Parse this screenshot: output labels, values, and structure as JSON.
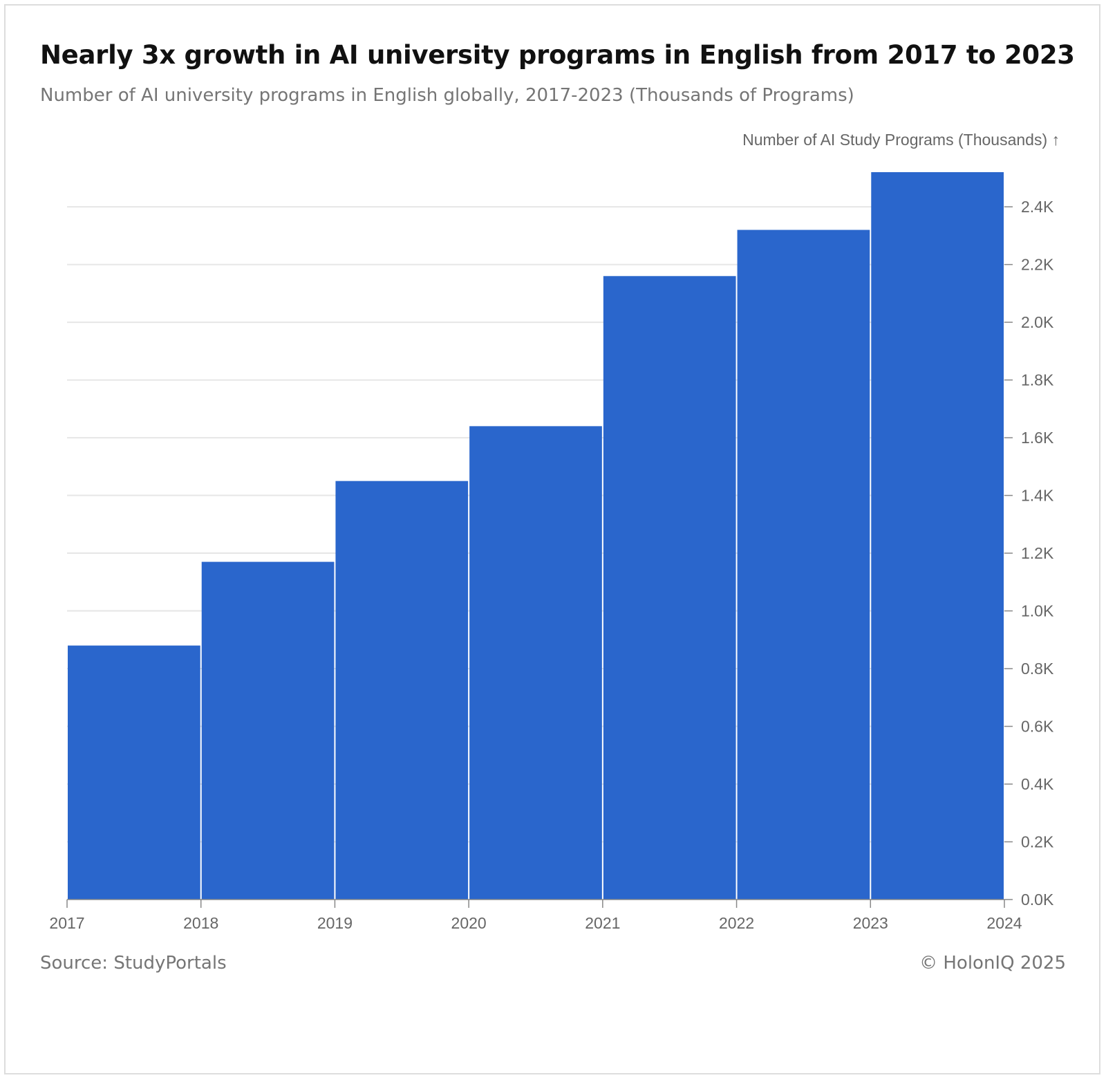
{
  "header": {
    "title": "Nearly 3x growth in AI university programs in English from 2017 to 2023",
    "subtitle": "Number of AI university programs in English globally, 2017-2023 (Thousands of Programs)"
  },
  "footer": {
    "source": "Source: StudyPortals",
    "copyright": "© HolonIQ 2025"
  },
  "colors": {
    "bar": "#2a66cc",
    "grid": "#e6e6e6",
    "axis": "#888888"
  },
  "chart_data": {
    "type": "bar",
    "title": "Nearly 3x growth in AI university programs in English from 2017 to 2023",
    "subtitle": "Number of AI university programs in English globally, 2017-2023 (Thousands of Programs)",
    "xlabel": "",
    "ylabel": "Number of AI Study Programs (Thousands) ↑",
    "y_axis_position": "right",
    "x_ticks": [
      "2017",
      "2018",
      "2019",
      "2020",
      "2021",
      "2022",
      "2023",
      "2024"
    ],
    "y_ticks": [
      "0.0K",
      "0.2K",
      "0.4K",
      "0.6K",
      "0.8K",
      "1.0K",
      "1.2K",
      "1.4K",
      "1.6K",
      "1.8K",
      "2.0K",
      "2.2K",
      "2.4K"
    ],
    "ylim": [
      0,
      2.52
    ],
    "grid": true,
    "series": [
      {
        "bins": [
          {
            "start": 2017,
            "end": 2018,
            "value": 0.88
          },
          {
            "start": 2018,
            "end": 2019,
            "value": 1.17
          },
          {
            "start": 2019,
            "end": 2020,
            "value": 1.45
          },
          {
            "start": 2020,
            "end": 2021,
            "value": 1.64
          },
          {
            "start": 2021,
            "end": 2022,
            "value": 2.16
          },
          {
            "start": 2022,
            "end": 2023,
            "value": 2.32
          },
          {
            "start": 2023,
            "end": 2024,
            "value": 2.52
          }
        ]
      }
    ]
  }
}
